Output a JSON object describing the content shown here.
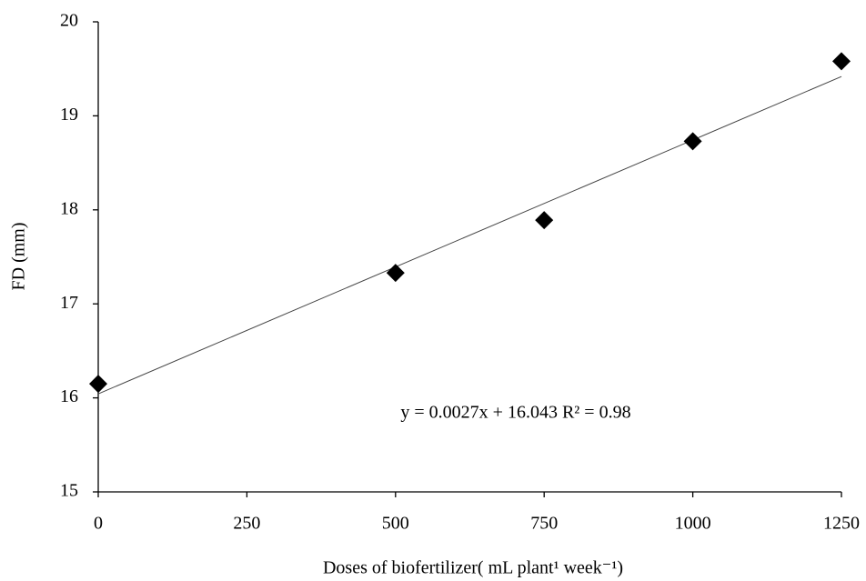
{
  "chart_data": {
    "type": "scatter",
    "xlabel": "Doses of biofertilizer( mL plant¹ week⁻¹)",
    "ylabel": "FD (mm)",
    "annotation": "y = 0.0027x + 16.043 R² = 0.98",
    "x": [
      0,
      500,
      750,
      1000,
      1250
    ],
    "values": [
      16.15,
      17.33,
      17.89,
      18.73,
      19.58
    ],
    "color": "#000000",
    "trendline": {
      "slope": 0.0027,
      "intercept": 16.043
    },
    "xlim": [
      0,
      1250
    ],
    "xticks": [
      0,
      250,
      500,
      750,
      1000,
      1250
    ],
    "ylim": [
      15,
      20
    ],
    "yticks": [
      15,
      16,
      17,
      18,
      19,
      20
    ],
    "grid": false
  }
}
